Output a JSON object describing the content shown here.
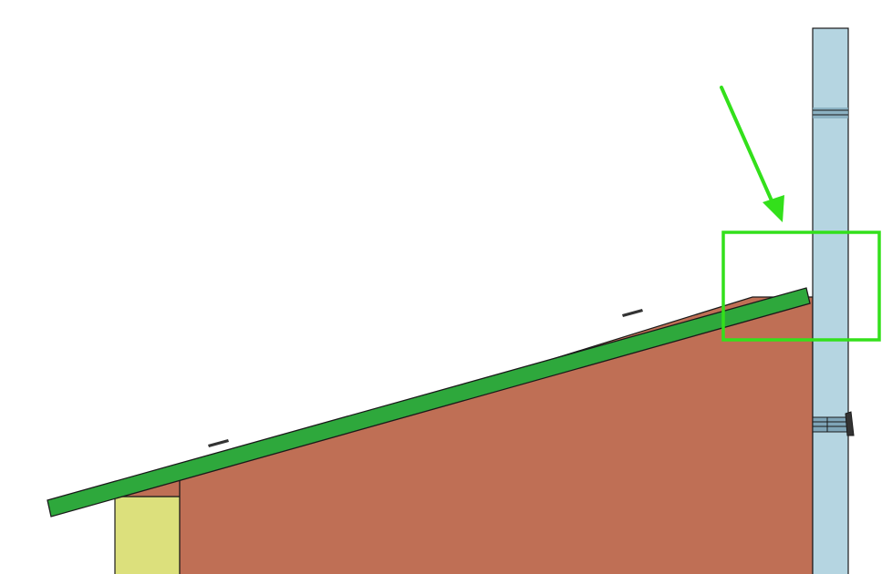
{
  "diagram": {
    "description_elements": [
      "wall",
      "roof-board",
      "chimney-pipe",
      "pipe-clamp",
      "pipe-bracket",
      "post",
      "highlight-box",
      "pointer-arrow"
    ],
    "colors": {
      "background": "#ffffff",
      "wall": "#bf6f55",
      "roof": "#2ea83c",
      "pipe": "#b5d5e1",
      "pipe_band": "#7fa5b8",
      "post": "#dce07c",
      "highlight": "#33e01b",
      "arrow": "#33e01b",
      "outline": "#1a1a1a",
      "roof_clip": "#333333"
    }
  }
}
